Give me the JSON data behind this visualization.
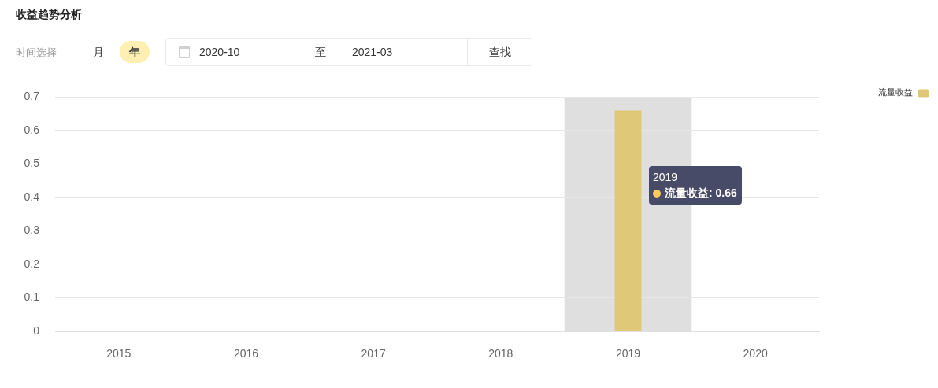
{
  "chart_data": {
    "type": "bar",
    "title": "收益趋势分析",
    "categories": [
      "2015",
      "2016",
      "2017",
      "2018",
      "2019",
      "2020"
    ],
    "series": [
      {
        "name": "流量收益",
        "color": "#dfc877",
        "values": [
          0,
          0,
          0,
          0,
          0.66,
          0
        ]
      }
    ],
    "ylim": [
      0,
      0.7
    ],
    "yticks": [
      0,
      0.1,
      0.2,
      0.3,
      0.4,
      0.5,
      0.6,
      0.7
    ],
    "grid": "y",
    "legend": "top right",
    "bands": [
      {
        "axis": "x",
        "from": "2019",
        "to": "2019",
        "color": "#dfdfdf"
      }
    ],
    "annotations": [
      "时间选择",
      "月",
      "年",
      "2020-10",
      "至",
      "2021-03",
      "查找",
      "2019",
      "流量收益: 0.66"
    ]
  }
}
